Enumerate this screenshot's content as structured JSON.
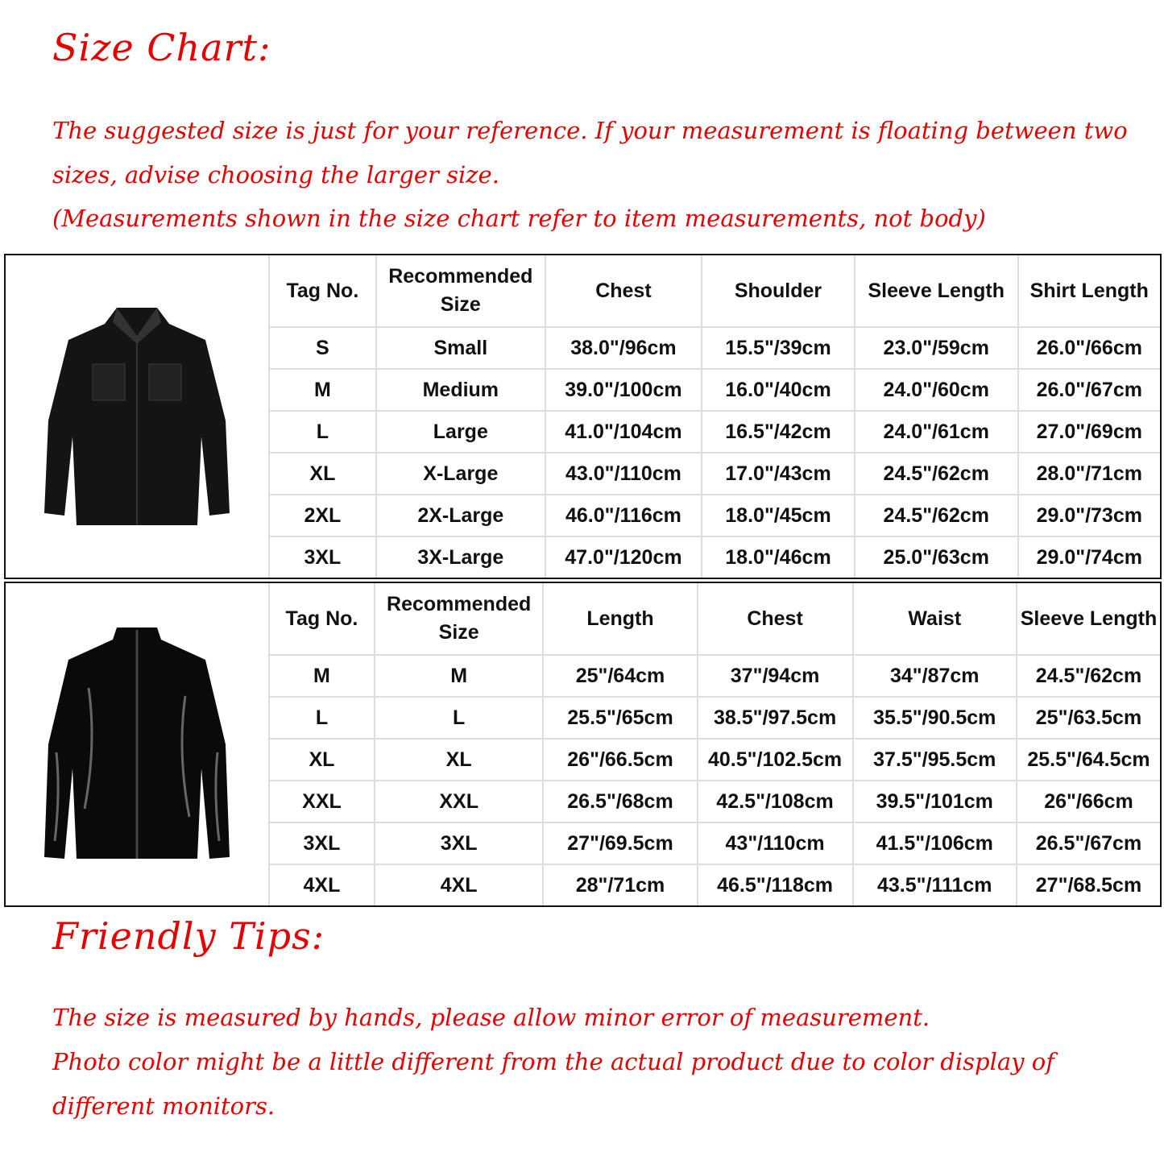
{
  "header": {
    "title": "Size Chart:",
    "note_lines": [
      "The suggested size is just for your reference. If your measurement is floating between two sizes, advise choosing the larger size.",
      "(Measurements shown in the size chart refer to item measurements, not body)"
    ]
  },
  "colors": {
    "accent": "#e60000",
    "text": "#111111",
    "grid": "#dddddd"
  },
  "tables": [
    {
      "image": "matte-leather-button-shirt",
      "headers": [
        "Tag No.",
        "Recommended Size",
        "Chest",
        "Shoulder",
        "Sleeve Length",
        "Shirt Length"
      ],
      "rows": [
        [
          "S",
          "Small",
          "38.0\"/96cm",
          "15.5\"/39cm",
          "23.0\"/59cm",
          "26.0\"/66cm"
        ],
        [
          "M",
          "Medium",
          "39.0\"/100cm",
          "16.0\"/40cm",
          "24.0\"/60cm",
          "26.0\"/67cm"
        ],
        [
          "L",
          "Large",
          "41.0\"/104cm",
          "16.5\"/42cm",
          "24.0\"/61cm",
          "27.0\"/69cm"
        ],
        [
          "XL",
          "X-Large",
          "43.0\"/110cm",
          "17.0\"/43cm",
          "24.5\"/62cm",
          "28.0\"/71cm"
        ],
        [
          "2XL",
          "2X-Large",
          "46.0\"/116cm",
          "18.0\"/45cm",
          "24.5\"/62cm",
          "29.0\"/73cm"
        ],
        [
          "3XL",
          "3X-Large",
          "47.0\"/120cm",
          "18.0\"/46cm",
          "25.0\"/63cm",
          "29.0\"/74cm"
        ]
      ]
    },
    {
      "image": "glossy-patent-zip-shirt",
      "headers": [
        "Tag No.",
        "Recommended Size",
        "Length",
        "Chest",
        "Waist",
        "Sleeve Length"
      ],
      "rows": [
        [
          "M",
          "M",
          "25\"/64cm",
          "37\"/94cm",
          "34\"/87cm",
          "24.5\"/62cm"
        ],
        [
          "L",
          "L",
          "25.5\"/65cm",
          "38.5\"/97.5cm",
          "35.5\"/90.5cm",
          "25\"/63.5cm"
        ],
        [
          "XL",
          "XL",
          "26\"/66.5cm",
          "40.5\"/102.5cm",
          "37.5\"/95.5cm",
          "25.5\"/64.5cm"
        ],
        [
          "XXL",
          "XXL",
          "26.5\"/68cm",
          "42.5\"/108cm",
          "39.5\"/101cm",
          "26\"/66cm"
        ],
        [
          "3XL",
          "3XL",
          "27\"/69.5cm",
          "43\"/110cm",
          "41.5\"/106cm",
          "26.5\"/67cm"
        ],
        [
          "4XL",
          "4XL",
          "28\"/71cm",
          "46.5\"/118cm",
          "43.5\"/111cm",
          "27\"/68.5cm"
        ]
      ]
    }
  ],
  "tips": {
    "title": "Friendly Tips:",
    "lines": [
      "The size is measured by hands, please allow minor error of measurement.",
      "Photo color might be a little different from the actual product due to color display of different monitors."
    ]
  }
}
